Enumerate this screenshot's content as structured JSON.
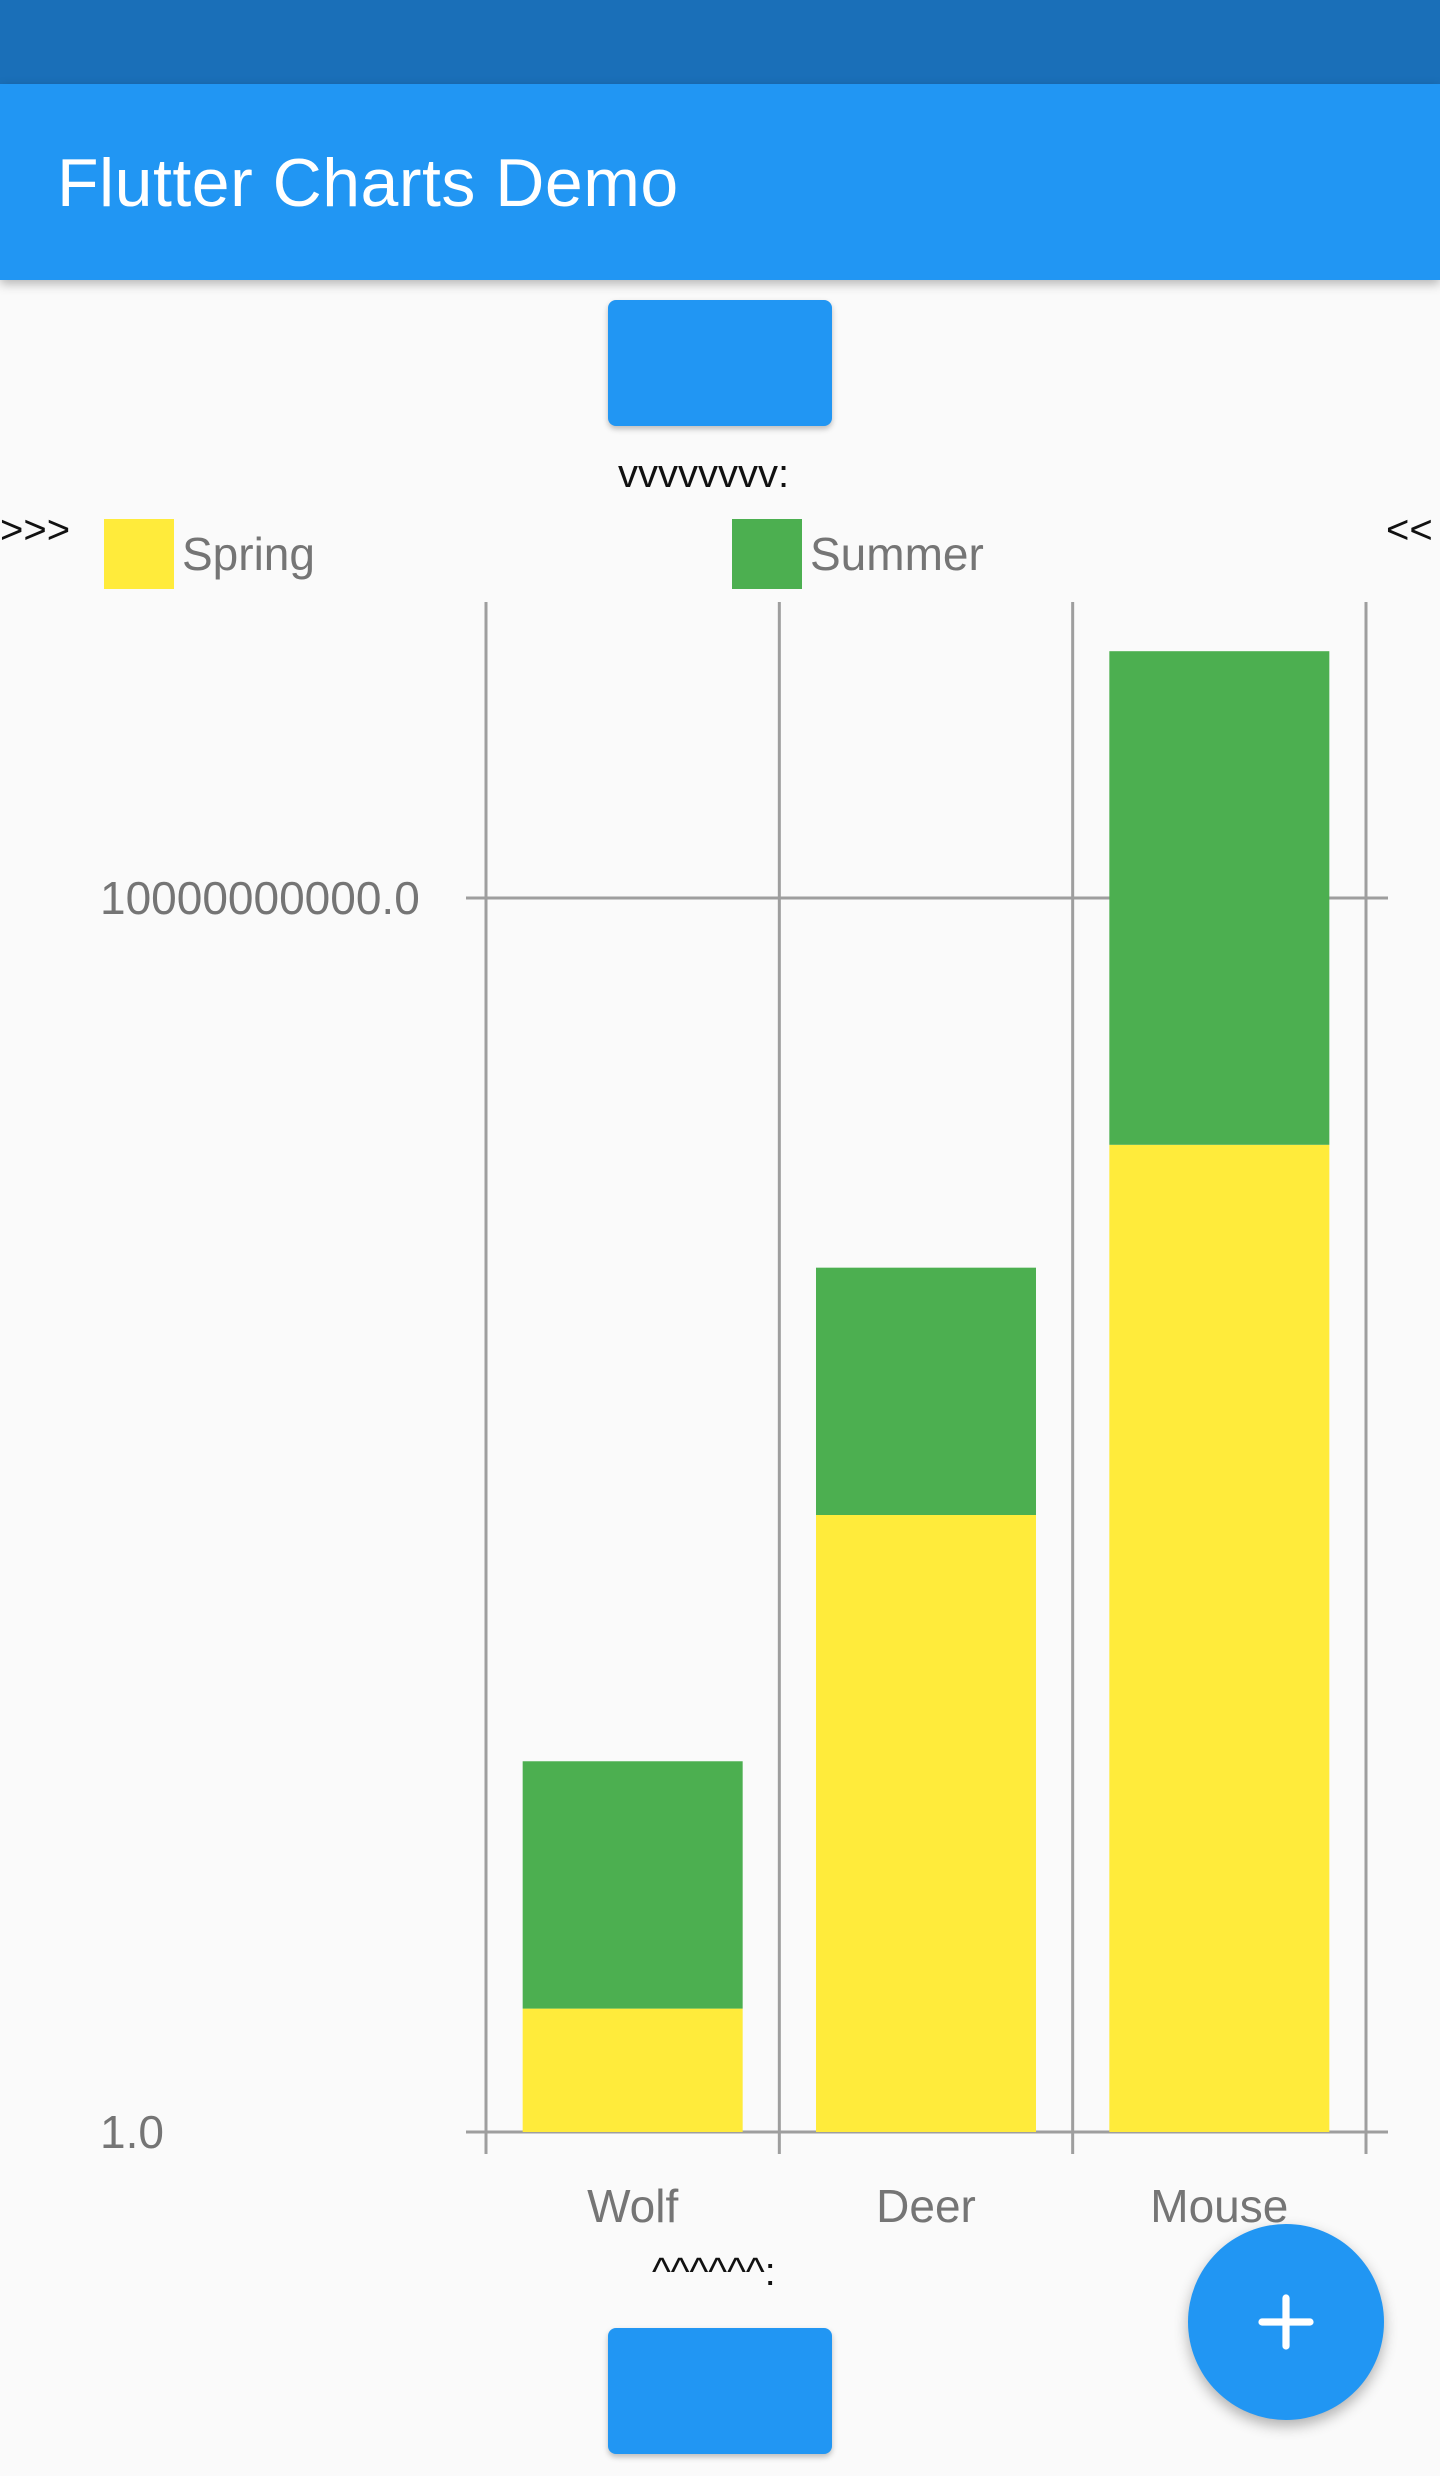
{
  "app": {
    "title": "Flutter Charts Demo"
  },
  "markers": {
    "top": "vvvvvvvv:",
    "bottom": "^^^^^^:",
    "left": ">>>",
    "right": "<<"
  },
  "colors": {
    "app_bar": "#2196f3",
    "status_bar": "#1a6fb8",
    "spring": "#ffeb3b",
    "summer": "#4caf50",
    "grid": "#9e9e9e",
    "label": "#757575"
  },
  "fab": {
    "icon": "plus-icon"
  },
  "chart_data": {
    "type": "bar",
    "stacked": true,
    "y_scale": "log10",
    "categories": [
      "Wolf",
      "Deer",
      "Mouse"
    ],
    "series": [
      {
        "name": "Spring",
        "color": "#ffeb3b",
        "values": [
          10,
          100000,
          100000000
        ]
      },
      {
        "name": "Summer",
        "color": "#4caf50",
        "values": [
          1000,
          10000000,
          1000000000000
        ]
      }
    ],
    "yticks": [
      {
        "value": 1,
        "label": "1.0"
      },
      {
        "value": 10000000000,
        "label": "10000000000.0"
      }
    ],
    "ylim": [
      1,
      10000000000000
    ],
    "legend": "top",
    "grid": true
  }
}
